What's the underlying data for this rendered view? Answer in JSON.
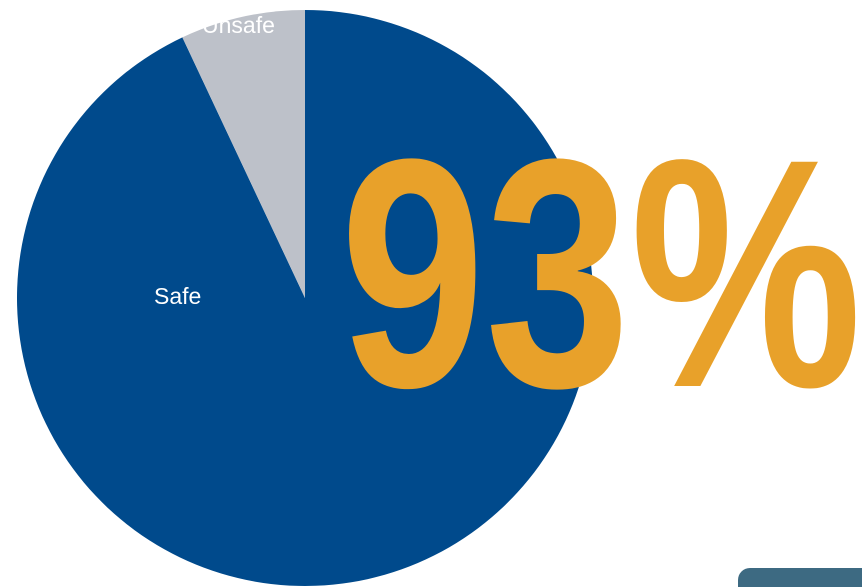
{
  "chart_data": {
    "type": "pie",
    "categories": [
      "Safe",
      "Unsafe"
    ],
    "values": [
      93,
      7
    ],
    "value_labels": [
      "93%",
      null
    ],
    "colors": [
      "#004a8c",
      "#bdc1c9"
    ]
  }
}
